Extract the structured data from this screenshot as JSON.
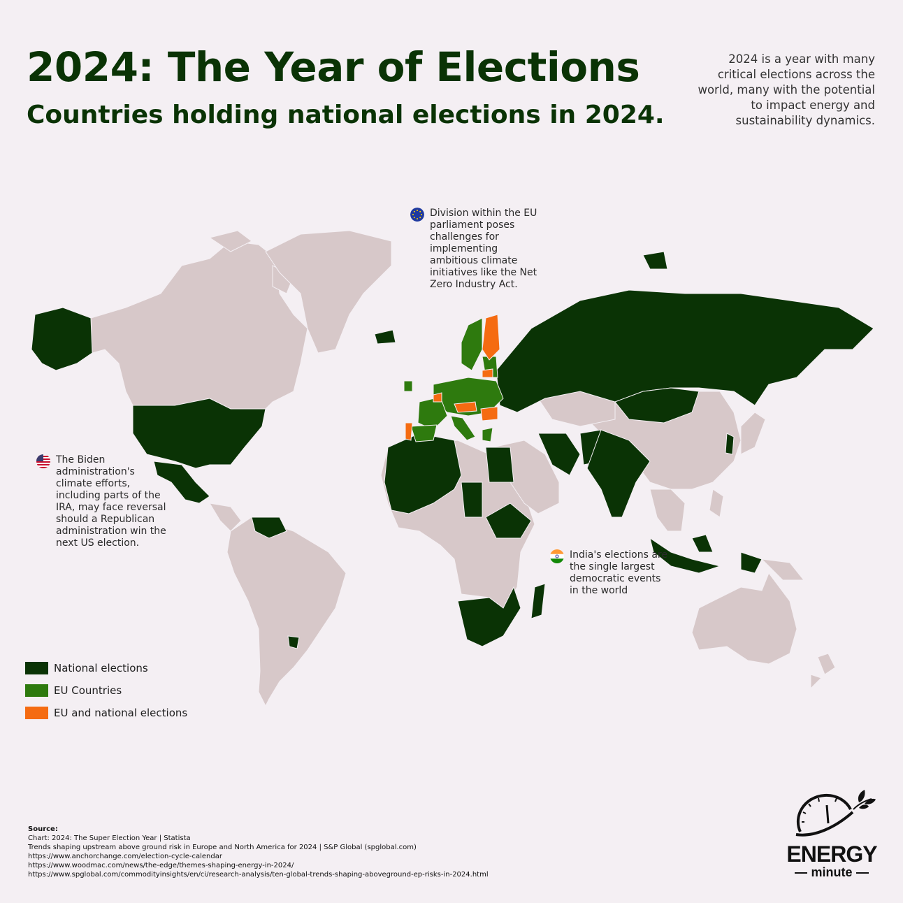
{
  "header": {
    "title": "2024: The Year of Elections",
    "subtitle": "Countries holding national elections in 2024.",
    "intro": "2024 is a year with many critical elections across the world, many with the potential to impact energy and sustainability dynamics."
  },
  "colors": {
    "background": "#f4eff3",
    "land_other": "#d7c8c9",
    "national": "#0a3305",
    "eu": "#2e7a0e",
    "eu_national": "#f56b11",
    "title": "#0a3305"
  },
  "annotations": {
    "eu": "Division within the EU parliament poses challenges for implementing ambitious climate initiatives like the Net Zero Industry Act.",
    "us": "The Biden administration's climate efforts, including parts of the IRA, may face reversal should a Republican administration win the next US election.",
    "india": "India's elections are the single largest democratic events in the world"
  },
  "legend": [
    {
      "label": "National elections",
      "color": "#0a3305"
    },
    {
      "label": "EU Countries",
      "color": "#2e7a0e"
    },
    {
      "label": "EU and national elections",
      "color": "#f56b11"
    }
  ],
  "source": {
    "heading": "Source:",
    "lines": [
      "Chart: 2024: The Super Election Year | Statista",
      "Trends shaping upstream above ground risk in Europe and North America for 2024 | S&P Global (spglobal.com)",
      "https://www.anchorchange.com/election-cycle-calendar",
      "https://www.woodmac.com/news/the-edge/themes-shaping-energy-in-2024/",
      "https://www.spglobal.com/commodityinsights/en/ci/research-analysis/ten-global-trends-shaping-aboveground-ep-risks-in-2024.html"
    ]
  },
  "logo": {
    "line1": "ENERGY",
    "line2": "minute",
    "icon": "clock-leaf-icon"
  }
}
